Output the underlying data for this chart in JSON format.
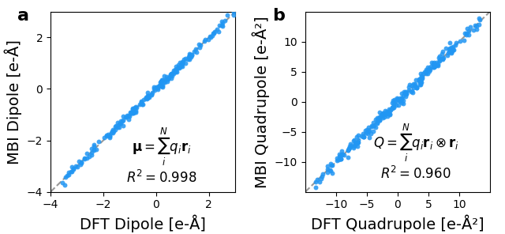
{
  "panel_a": {
    "label": "a",
    "xlabel": "DFT Dipole [e-Å]",
    "ylabel": "MBI Dipole [e-Å]",
    "xlim": [
      -4,
      3
    ],
    "ylim": [
      -4,
      3
    ],
    "xticks": [
      -4,
      -2,
      0,
      2
    ],
    "yticks": [
      -4,
      -2,
      0,
      2
    ],
    "diag_min": -4,
    "diag_max": 3,
    "r2": "0.998",
    "formula_bold_part": "μ",
    "formula": "= Σ q_i r_i",
    "dot_color": "#2196F3",
    "dot_size": 18,
    "dot_alpha": 0.85,
    "seed": 42,
    "n_points": 200,
    "noise": 0.08
  },
  "panel_b": {
    "label": "b",
    "xlabel": "DFT Quadrupole [e-Å²]",
    "ylabel": "MBI Quadrupole [e-Å²]",
    "xlim": [
      -15,
      15
    ],
    "ylim": [
      -15,
      15
    ],
    "xticks": [
      -10,
      -5,
      0,
      5,
      10
    ],
    "yticks": [
      -10,
      -5,
      0,
      5,
      10
    ],
    "diag_min": -15,
    "diag_max": 15,
    "r2": "0.960",
    "dot_color": "#2196F3",
    "dot_size": 18,
    "dot_alpha": 0.85,
    "seed": 99,
    "n_points": 250,
    "noise": 0.5
  },
  "background_color": "#ffffff",
  "line_color": "#999999",
  "line_style": "--",
  "line_width": 1.5,
  "label_fontsize": 14,
  "tick_fontsize": 10,
  "panel_label_fontsize": 16,
  "annotation_fontsize": 12
}
